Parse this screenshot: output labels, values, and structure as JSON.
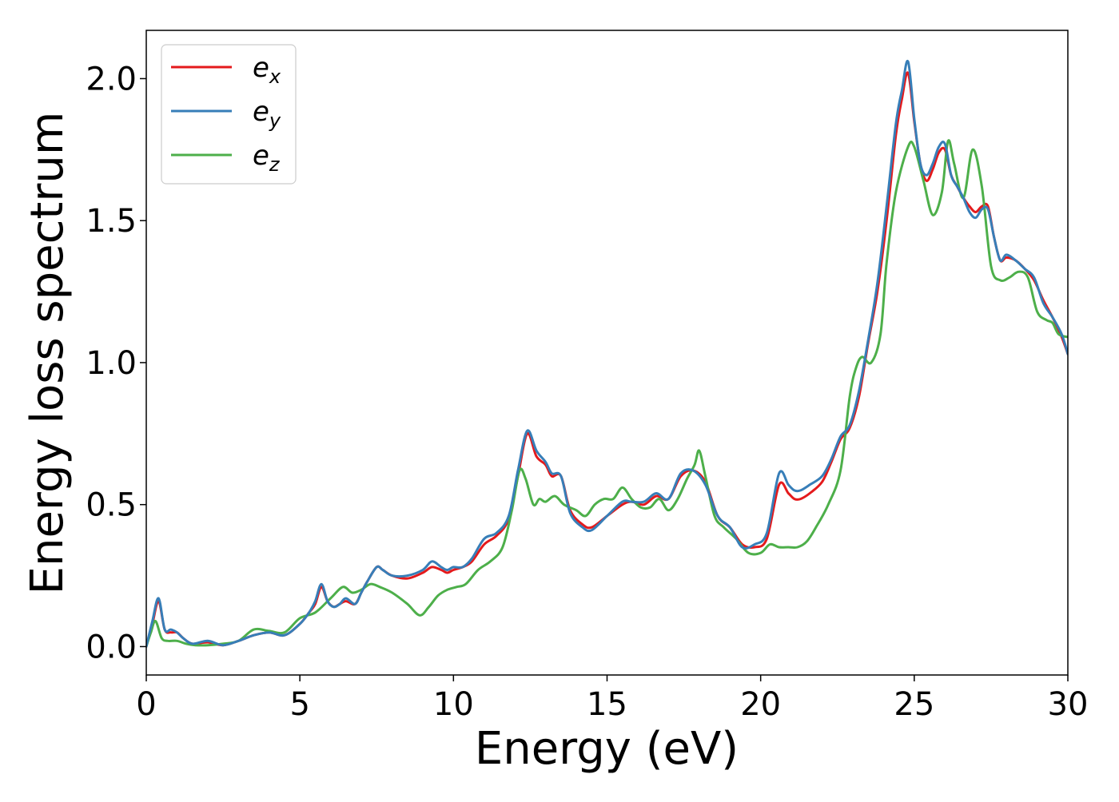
{
  "chart_data": {
    "type": "line",
    "xlabel": "Energy (eV)",
    "ylabel": "Energy loss spectrum",
    "xlim": [
      0,
      30
    ],
    "ylim": [
      -0.1,
      2.17
    ],
    "xticks": [
      0,
      5,
      10,
      15,
      20,
      25,
      30
    ],
    "xtick_labels": [
      "0",
      "5",
      "10",
      "15",
      "20",
      "25",
      "30"
    ],
    "yticks": [
      0.0,
      0.5,
      1.0,
      1.5,
      2.0
    ],
    "ytick_labels": [
      "0.0",
      "0.5",
      "1.0",
      "1.5",
      "2.0"
    ],
    "grid": false,
    "legend_position": "top-left",
    "series": [
      {
        "name": "e",
        "subscript": "x",
        "color": "#e41a1c",
        "x": [
          0,
          0.2,
          0.4,
          0.6,
          0.8,
          1.0,
          1.2,
          1.5,
          2.0,
          2.5,
          3.0,
          3.5,
          4.0,
          4.5,
          5.0,
          5.3,
          5.5,
          5.7,
          5.9,
          6.1,
          6.3,
          6.5,
          6.8,
          7.0,
          7.2,
          7.5,
          7.7,
          8.0,
          8.5,
          9.0,
          9.3,
          9.6,
          9.8,
          10.0,
          10.3,
          10.6,
          11.0,
          11.4,
          11.8,
          12.1,
          12.4,
          12.7,
          13.0,
          13.2,
          13.5,
          13.8,
          14.2,
          14.5,
          15.0,
          15.5,
          15.8,
          16.2,
          16.6,
          17.0,
          17.4,
          17.8,
          18.2,
          18.6,
          19.0,
          19.4,
          19.8,
          20.2,
          20.6,
          20.9,
          21.1,
          21.3,
          21.6,
          22.0,
          22.3,
          22.6,
          22.9,
          23.2,
          23.5,
          23.8,
          24.1,
          24.4,
          24.6,
          24.8,
          25.0,
          25.2,
          25.4,
          25.6,
          25.8,
          26.0,
          26.2,
          26.4,
          26.6,
          26.8,
          27.0,
          27.2,
          27.4,
          27.6,
          27.8,
          28.0,
          28.3,
          28.6,
          28.9,
          29.2,
          29.5,
          29.8,
          30.0
        ],
        "values": [
          0.0,
          0.08,
          0.16,
          0.06,
          0.05,
          0.05,
          0.03,
          0.01,
          0.015,
          0.005,
          0.02,
          0.04,
          0.05,
          0.04,
          0.08,
          0.12,
          0.15,
          0.21,
          0.16,
          0.14,
          0.15,
          0.16,
          0.15,
          0.19,
          0.23,
          0.28,
          0.27,
          0.25,
          0.24,
          0.26,
          0.28,
          0.27,
          0.26,
          0.27,
          0.28,
          0.3,
          0.36,
          0.39,
          0.45,
          0.6,
          0.75,
          0.67,
          0.64,
          0.6,
          0.6,
          0.48,
          0.43,
          0.42,
          0.46,
          0.5,
          0.51,
          0.5,
          0.53,
          0.52,
          0.6,
          0.62,
          0.58,
          0.46,
          0.42,
          0.36,
          0.35,
          0.38,
          0.57,
          0.54,
          0.52,
          0.52,
          0.54,
          0.58,
          0.65,
          0.73,
          0.77,
          0.88,
          1.07,
          1.25,
          1.5,
          1.8,
          1.93,
          2.02,
          1.85,
          1.7,
          1.64,
          1.68,
          1.74,
          1.75,
          1.66,
          1.62,
          1.58,
          1.55,
          1.53,
          1.55,
          1.55,
          1.44,
          1.36,
          1.37,
          1.36,
          1.33,
          1.29,
          1.22,
          1.16,
          1.09,
          1.03
        ]
      },
      {
        "name": "e",
        "subscript": "y",
        "color": "#377eb8",
        "x": [
          0,
          0.2,
          0.4,
          0.6,
          0.8,
          1.0,
          1.2,
          1.5,
          2.0,
          2.5,
          3.0,
          3.5,
          4.0,
          4.5,
          5.0,
          5.3,
          5.5,
          5.7,
          5.9,
          6.1,
          6.3,
          6.5,
          6.8,
          7.0,
          7.2,
          7.5,
          7.7,
          8.0,
          8.5,
          9.0,
          9.3,
          9.6,
          9.8,
          10.0,
          10.3,
          10.6,
          11.0,
          11.4,
          11.8,
          12.1,
          12.4,
          12.7,
          13.0,
          13.2,
          13.5,
          13.8,
          14.2,
          14.5,
          15.0,
          15.5,
          15.8,
          16.2,
          16.6,
          17.0,
          17.4,
          17.8,
          18.2,
          18.6,
          19.0,
          19.4,
          19.8,
          20.2,
          20.6,
          20.9,
          21.1,
          21.3,
          21.6,
          22.0,
          22.3,
          22.6,
          22.9,
          23.2,
          23.5,
          23.8,
          24.1,
          24.4,
          24.6,
          24.8,
          25.0,
          25.2,
          25.4,
          25.6,
          25.8,
          26.0,
          26.2,
          26.4,
          26.6,
          26.8,
          27.0,
          27.2,
          27.4,
          27.6,
          27.8,
          28.0,
          28.3,
          28.6,
          28.9,
          29.2,
          29.5,
          29.8,
          30.0
        ],
        "values": [
          0.0,
          0.09,
          0.17,
          0.06,
          0.06,
          0.05,
          0.03,
          0.01,
          0.02,
          0.005,
          0.02,
          0.04,
          0.05,
          0.04,
          0.08,
          0.12,
          0.16,
          0.22,
          0.16,
          0.14,
          0.15,
          0.17,
          0.15,
          0.19,
          0.23,
          0.28,
          0.27,
          0.25,
          0.25,
          0.27,
          0.3,
          0.28,
          0.27,
          0.28,
          0.28,
          0.31,
          0.38,
          0.4,
          0.46,
          0.62,
          0.76,
          0.69,
          0.65,
          0.61,
          0.6,
          0.47,
          0.42,
          0.41,
          0.46,
          0.51,
          0.51,
          0.51,
          0.54,
          0.52,
          0.61,
          0.62,
          0.57,
          0.46,
          0.42,
          0.35,
          0.36,
          0.4,
          0.61,
          0.57,
          0.55,
          0.55,
          0.57,
          0.6,
          0.66,
          0.74,
          0.78,
          0.9,
          1.08,
          1.28,
          1.55,
          1.84,
          1.96,
          2.06,
          1.86,
          1.7,
          1.66,
          1.7,
          1.76,
          1.77,
          1.66,
          1.62,
          1.58,
          1.53,
          1.51,
          1.54,
          1.54,
          1.44,
          1.36,
          1.38,
          1.36,
          1.33,
          1.3,
          1.21,
          1.16,
          1.1,
          1.03
        ]
      },
      {
        "name": "e",
        "subscript": "z",
        "color": "#4daf4a",
        "x": [
          0,
          0.15,
          0.3,
          0.5,
          0.7,
          1.0,
          1.3,
          1.6,
          2.0,
          2.5,
          3.0,
          3.5,
          4.0,
          4.5,
          5.0,
          5.5,
          6.0,
          6.4,
          6.7,
          7.0,
          7.3,
          7.6,
          8.0,
          8.5,
          8.9,
          9.2,
          9.5,
          9.8,
          10.1,
          10.4,
          10.8,
          11.2,
          11.6,
          11.9,
          12.15,
          12.35,
          12.6,
          12.8,
          13.0,
          13.3,
          13.6,
          14.0,
          14.3,
          14.6,
          14.9,
          15.2,
          15.5,
          15.8,
          16.1,
          16.4,
          16.7,
          17.0,
          17.3,
          17.6,
          17.85,
          18.0,
          18.2,
          18.5,
          18.8,
          19.2,
          19.6,
          20.0,
          20.3,
          20.6,
          20.9,
          21.2,
          21.5,
          21.8,
          22.2,
          22.6,
          22.9,
          23.1,
          23.3,
          23.6,
          23.9,
          24.1,
          24.4,
          24.8,
          25.0,
          25.3,
          25.6,
          25.9,
          26.1,
          26.3,
          26.6,
          26.9,
          27.2,
          27.5,
          27.8,
          28.1,
          28.4,
          28.7,
          29.0,
          29.3,
          29.5,
          29.7,
          30.0
        ],
        "values": [
          0.0,
          0.05,
          0.09,
          0.03,
          0.02,
          0.02,
          0.01,
          0.005,
          0.005,
          0.01,
          0.02,
          0.06,
          0.055,
          0.05,
          0.1,
          0.12,
          0.17,
          0.21,
          0.19,
          0.2,
          0.22,
          0.21,
          0.19,
          0.15,
          0.11,
          0.14,
          0.18,
          0.2,
          0.21,
          0.22,
          0.27,
          0.3,
          0.35,
          0.48,
          0.62,
          0.59,
          0.5,
          0.52,
          0.51,
          0.53,
          0.5,
          0.48,
          0.46,
          0.5,
          0.52,
          0.52,
          0.56,
          0.52,
          0.49,
          0.49,
          0.52,
          0.48,
          0.52,
          0.59,
          0.64,
          0.69,
          0.6,
          0.46,
          0.42,
          0.38,
          0.33,
          0.33,
          0.36,
          0.35,
          0.35,
          0.35,
          0.37,
          0.42,
          0.5,
          0.62,
          0.88,
          0.98,
          1.02,
          1.0,
          1.1,
          1.35,
          1.6,
          1.76,
          1.76,
          1.64,
          1.52,
          1.6,
          1.78,
          1.7,
          1.58,
          1.75,
          1.62,
          1.34,
          1.29,
          1.3,
          1.32,
          1.3,
          1.18,
          1.15,
          1.14,
          1.1,
          1.09
        ]
      }
    ]
  }
}
